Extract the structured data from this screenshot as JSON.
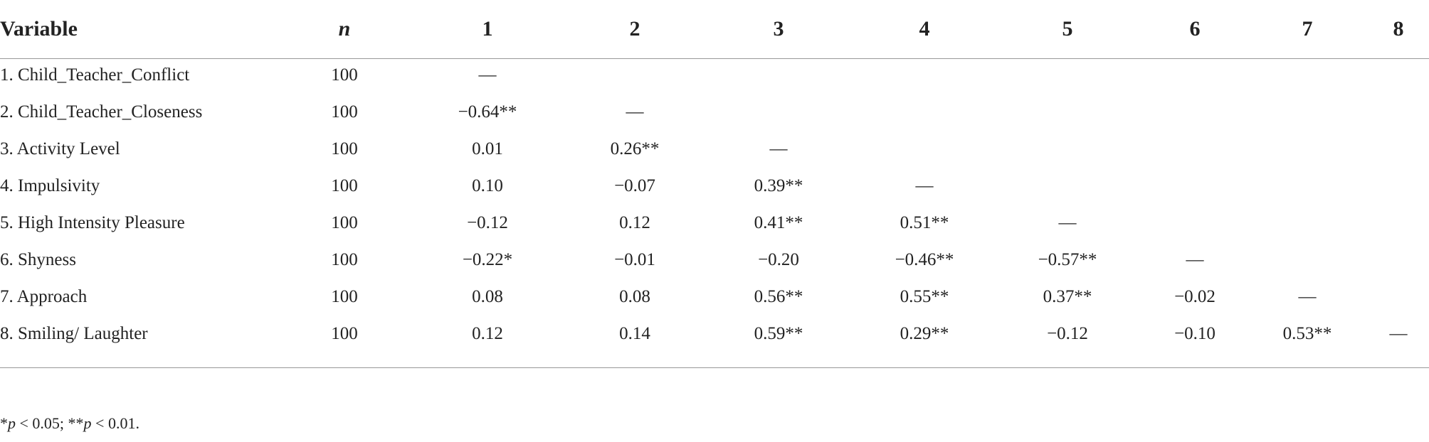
{
  "table": {
    "header": [
      "Variable",
      "n",
      "1",
      "2",
      "3",
      "4",
      "5",
      "6",
      "7",
      "8"
    ],
    "rows": [
      {
        "label": "1. Child_Teacher_Conflict",
        "n": 100,
        "cells": [
          "—"
        ]
      },
      {
        "label": "2. Child_Teacher_Closeness",
        "n": 100,
        "cells": [
          "−0.64**",
          "—"
        ]
      },
      {
        "label": "3. Activity Level",
        "n": 100,
        "cells": [
          "0.01",
          "0.26**",
          "—"
        ]
      },
      {
        "label": "4. Impulsivity",
        "n": 100,
        "cells": [
          "0.10",
          "−0.07",
          "0.39**",
          "—"
        ]
      },
      {
        "label": "5. High Intensity Pleasure",
        "n": 100,
        "cells": [
          "−0.12",
          "0.12",
          "0.41**",
          "0.51**",
          "—"
        ]
      },
      {
        "label": "6. Shyness",
        "n": 100,
        "cells": [
          "−0.22*",
          "−0.01",
          "−0.20",
          "−0.46**",
          "−0.57**",
          "—"
        ]
      },
      {
        "label": "7. Approach",
        "n": 100,
        "cells": [
          "0.08",
          "0.08",
          "0.56**",
          "0.55**",
          "0.37**",
          "−0.02",
          "—"
        ]
      },
      {
        "label": "8. Smiling/ Laughter",
        "n": 100,
        "cells": [
          "0.12",
          "0.14",
          "0.59**",
          "0.29**",
          "−0.12",
          "−0.10",
          "0.53**",
          "—"
        ]
      }
    ],
    "footnote": [
      {
        "text": "*"
      },
      {
        "text": "p",
        "italic": true
      },
      {
        "text": " < 0.05; **"
      },
      {
        "text": "p",
        "italic": true
      },
      {
        "text": " < 0.01."
      }
    ]
  }
}
